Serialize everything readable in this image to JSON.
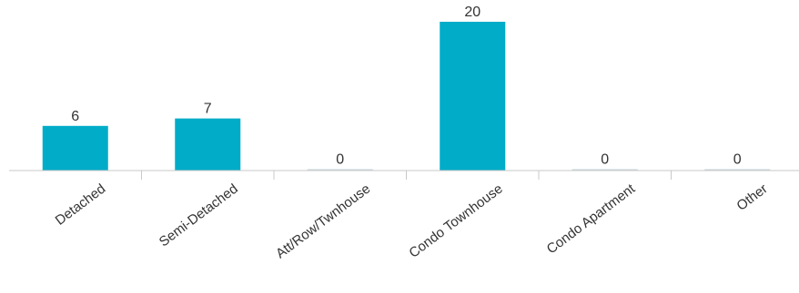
{
  "chart_data": {
    "type": "bar",
    "categories": [
      "Detached",
      "Semi-Detached",
      "Att/Row/Twnhouse",
      "Condo Townhouse",
      "Condo Apartment",
      "Other"
    ],
    "values": [
      6,
      7,
      0,
      20,
      0,
      0
    ],
    "title": "",
    "xlabel": "",
    "ylabel": "",
    "ylim": [
      0,
      20
    ],
    "grid": false,
    "legend": "none",
    "data_labels": true,
    "colors": {
      "bar": "#00acc8",
      "zero_bar": "#c9d6d8",
      "axis": "#c8c8c8",
      "text": "#333333"
    }
  }
}
